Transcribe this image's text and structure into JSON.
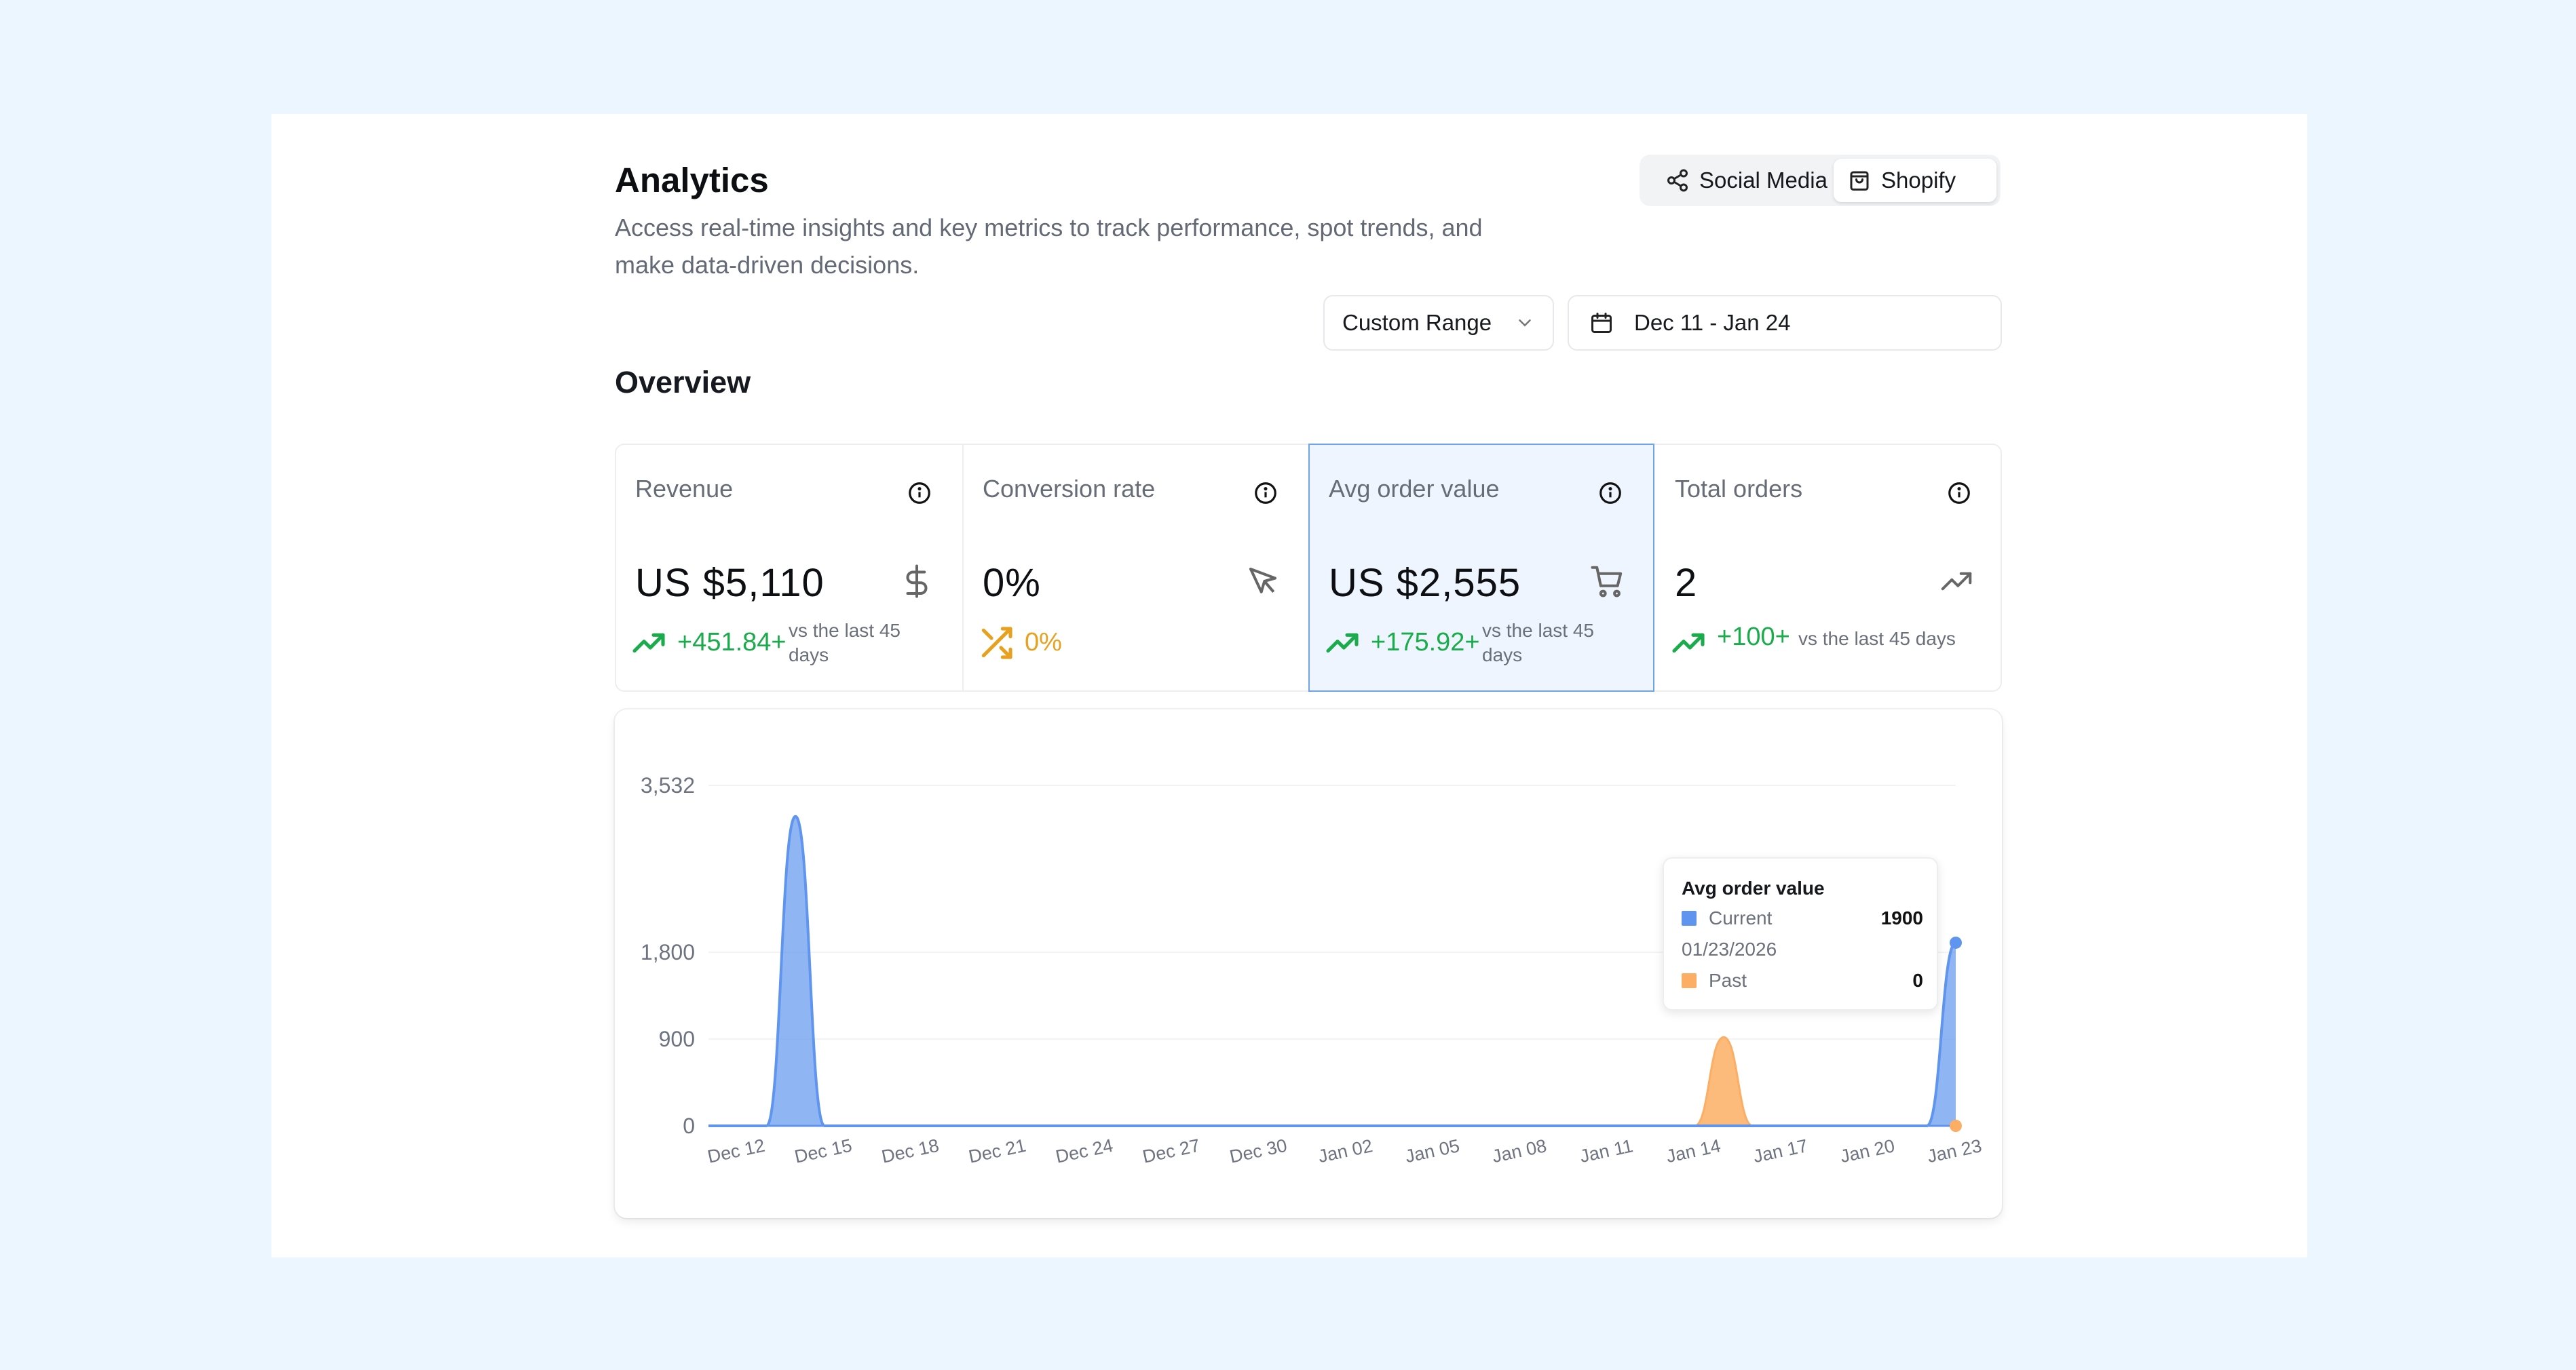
{
  "header": {
    "title": "Analytics",
    "subtitle": "Access real-time insights and key metrics to track performance, spot trends, and make data-driven decisions."
  },
  "source_toggle": {
    "options": [
      {
        "label": "Social Media",
        "icon": "share-icon",
        "selected": false
      },
      {
        "label": "Shopify",
        "icon": "shopping-bag-icon",
        "selected": true
      }
    ]
  },
  "filters": {
    "range_select": "Custom Range",
    "date_range": "Dec 11 - Jan 24"
  },
  "overview": {
    "heading": "Overview",
    "metrics": [
      {
        "label": "Revenue",
        "value": "US $5,110",
        "delta": "+451.84+",
        "note": "vs the last 45 days",
        "icon": "dollar-icon",
        "trend": "trending-up-icon",
        "trend_color": "#1aab4b",
        "active": false
      },
      {
        "label": "Conversion rate",
        "value": "0%",
        "delta": "0%",
        "note": "",
        "icon": "cursor-arrow-icon",
        "trend": "shuffle-icon",
        "trend_color": "#e7a11f",
        "active": false
      },
      {
        "label": "Avg order value",
        "value": "US $2,555",
        "delta": "+175.92+",
        "note": "vs the last 45 days",
        "icon": "shopping-cart-icon",
        "trend": "trending-up-icon",
        "trend_color": "#1aab4b",
        "active": true
      },
      {
        "label": "Total orders",
        "value": "2",
        "delta": "+100+",
        "note": "vs the last 45 days",
        "icon": "trending-up-icon",
        "trend": "trending-up-icon",
        "trend_color": "#1aab4b",
        "active": false
      }
    ]
  },
  "colors": {
    "current": "#5f95ee",
    "past": "#fbae64",
    "accent_border": "#6fa3ec",
    "up": "#1aab4b",
    "neutral": "#e7a11f"
  },
  "chart_data": {
    "type": "area",
    "yticks": [
      "0",
      "900",
      "1,800",
      "3,532"
    ],
    "ylim": [
      0,
      3532
    ],
    "xticks": [
      "Dec 12",
      "Dec 15",
      "Dec 18",
      "Dec 21",
      "Dec 24",
      "Dec 27",
      "Dec 30",
      "Jan 02",
      "Jan 05",
      "Jan 08",
      "Jan 11",
      "Jan 14",
      "Jan 17",
      "Jan 20",
      "Jan 23"
    ],
    "x": [
      "Dec 11",
      "Dec 12",
      "Dec 13",
      "Dec 14",
      "Dec 15",
      "Dec 16",
      "Dec 17",
      "Dec 18",
      "Dec 19",
      "Dec 20",
      "Dec 21",
      "Dec 22",
      "Dec 23",
      "Dec 24",
      "Dec 25",
      "Dec 26",
      "Dec 27",
      "Dec 28",
      "Dec 29",
      "Dec 30",
      "Dec 31",
      "Jan 01",
      "Jan 02",
      "Jan 03",
      "Jan 04",
      "Jan 05",
      "Jan 06",
      "Jan 07",
      "Jan 08",
      "Jan 09",
      "Jan 10",
      "Jan 11",
      "Jan 12",
      "Jan 13",
      "Jan 14",
      "Jan 15",
      "Jan 16",
      "Jan 17",
      "Jan 18",
      "Jan 19",
      "Jan 20",
      "Jan 21",
      "Jan 22",
      "Jan 23"
    ],
    "series": [
      {
        "name": "Current",
        "values": [
          0,
          0,
          0,
          3210,
          0,
          0,
          0,
          0,
          0,
          0,
          0,
          0,
          0,
          0,
          0,
          0,
          0,
          0,
          0,
          0,
          0,
          0,
          0,
          0,
          0,
          0,
          0,
          0,
          0,
          0,
          0,
          0,
          0,
          0,
          0,
          0,
          0,
          0,
          0,
          0,
          0,
          0,
          0,
          1900
        ]
      },
      {
        "name": "Past",
        "values": [
          0,
          0,
          0,
          0,
          0,
          0,
          0,
          0,
          0,
          0,
          0,
          0,
          0,
          0,
          0,
          0,
          0,
          0,
          0,
          0,
          0,
          0,
          0,
          0,
          0,
          0,
          0,
          0,
          0,
          0,
          0,
          0,
          0,
          0,
          0,
          920,
          0,
          0,
          0,
          0,
          0,
          0,
          0,
          0
        ]
      }
    ],
    "grid": true,
    "tooltip": {
      "title": "Avg order value",
      "current_label": "Current",
      "current_value": "1900",
      "date": "01/23/2026",
      "past_label": "Past",
      "past_value": "0"
    }
  }
}
